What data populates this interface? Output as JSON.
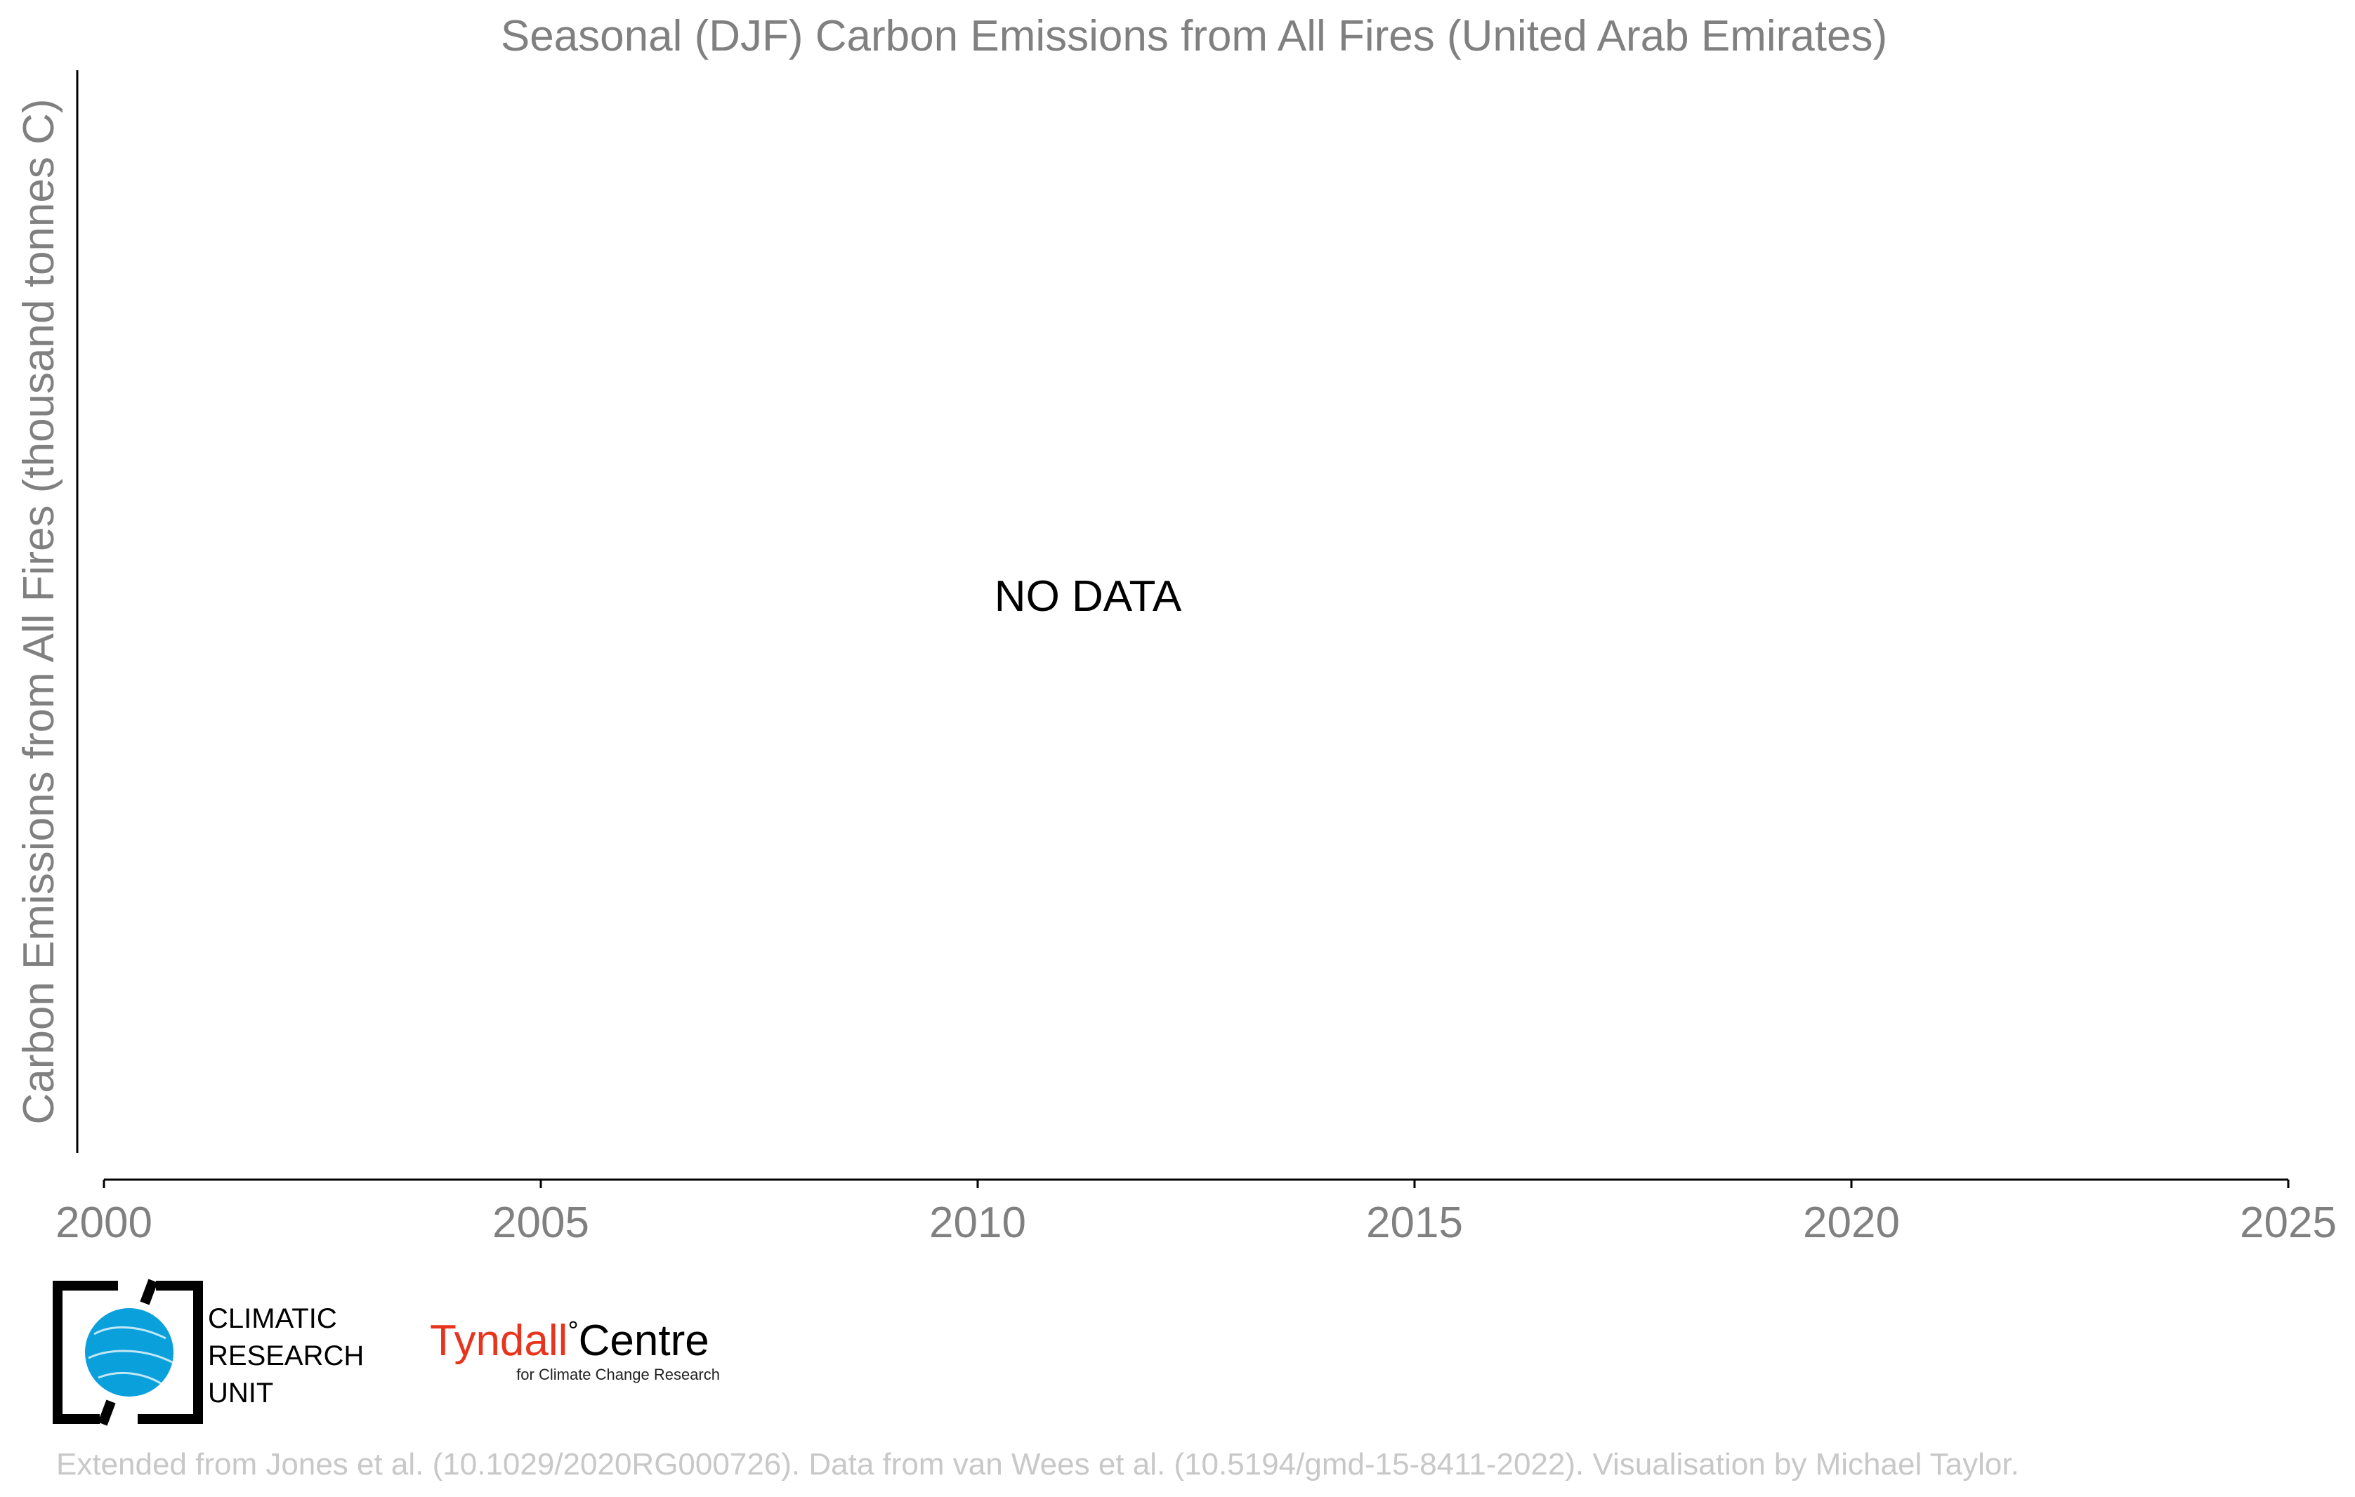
{
  "chart_data": {
    "type": "line",
    "title": "Seasonal (DJF) Carbon Emissions from All Fires (United Arab Emirates)",
    "ylabel": "Carbon Emissions from All Fires (thousand tonnes C)",
    "xlabel": "",
    "xlim": [
      2000,
      2025
    ],
    "x_ticks": [
      "2000",
      "2005",
      "2010",
      "2015",
      "2020",
      "2025"
    ],
    "series": [],
    "annotation": "NO DATA",
    "grid": false
  },
  "logos": {
    "cru": {
      "line1": "CLIMATIC",
      "line2": "RESEARCH",
      "line3": "UNIT",
      "color": "#0aa0dc"
    },
    "tyndall": {
      "name": "Tyndall",
      "degree": "°",
      "centre": "Centre",
      "subtitle": "for Climate Change Research",
      "color": "#e8341c"
    }
  },
  "footer": "Extended from Jones et al. (10.1029/2020RG000726). Data from van Wees et al. (10.5194/gmd-15-8411-2022). Visualisation by Michael Taylor."
}
